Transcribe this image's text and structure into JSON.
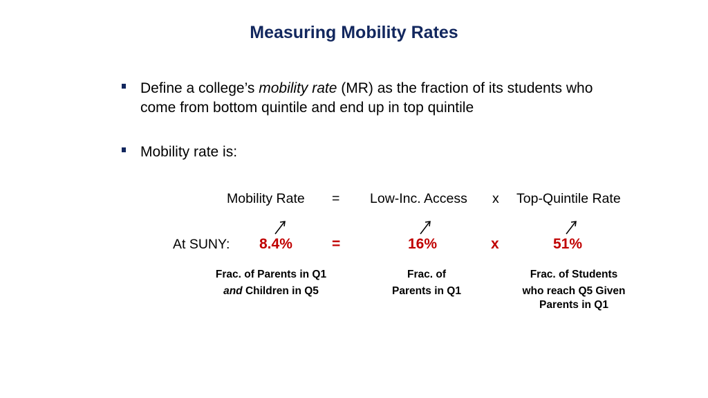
{
  "title": "Measuring Mobility Rates",
  "bullets": [
    {
      "pre": "Define a college’s ",
      "em": "mobility rate",
      "post_line1": " (MR) as the fraction of its students who",
      "line2": "come from bottom quintile and end up in top quintile"
    },
    {
      "text": "Mobility rate is:"
    }
  ],
  "equation": {
    "lhs": "Mobility Rate",
    "eq": "=",
    "term1": "Low-Inc. Access",
    "times": "x",
    "term2": "Top-Quintile Rate"
  },
  "suny": {
    "label": "At SUNY:",
    "mr": "8.4%",
    "eq": "=",
    "access": "16%",
    "times": "x",
    "rate": "51%"
  },
  "descriptions": {
    "mr_line1": "Frac. of Parents in Q1",
    "mr_line2_em": "and",
    "mr_line2_rest": " Children in Q5",
    "access_line1": "Frac. of",
    "access_line2": "Parents in Q1",
    "rate_line1": "Frac. of Students",
    "rate_line2": "who reach Q5 Given",
    "rate_line3": "Parents in Q1"
  },
  "colors": {
    "title": "#12275e",
    "highlight": "#c00000"
  },
  "icons": [
    "arrow-icon",
    "arrow-icon",
    "arrow-icon"
  ]
}
